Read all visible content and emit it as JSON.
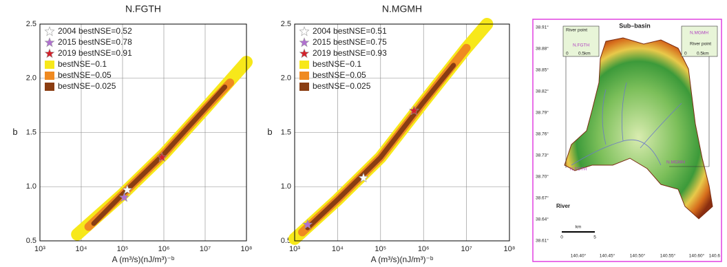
{
  "chart_data": [
    {
      "type": "band",
      "title": "N.FGTH",
      "xlabel": "A (m³/s)(nJ/m³)⁻ᵇ",
      "ylabel": "b",
      "xscale": "log",
      "xlim": [
        1000,
        100000000
      ],
      "xticks": [
        {
          "value": 1000,
          "label": "10³"
        },
        {
          "value": 10000,
          "label": "10⁴"
        },
        {
          "value": 100000,
          "label": "10⁵"
        },
        {
          "value": 1000000,
          "label": "10⁶"
        },
        {
          "value": 10000000,
          "label": "10⁷"
        },
        {
          "value": 100000000,
          "label": "10⁸"
        }
      ],
      "ylim": [
        0.5,
        2.5
      ],
      "yticks": [
        0.5,
        {
          "value": 1,
          "label": "1.0"
        },
        1.5,
        {
          "value": 2,
          "label": "2.0"
        },
        2.5
      ],
      "grid": true,
      "legend": "upper left",
      "series": [
        {
          "name": "bestNSE−0.1",
          "color": "#f7e81a",
          "x": [
            8000,
            100000,
            1000000,
            10000000,
            100000000
          ],
          "values": [
            0.56,
            0.93,
            1.3,
            1.72,
            2.15
          ]
        },
        {
          "name": "bestNSE−0.05",
          "color": "#ef8a21",
          "x": [
            15000,
            100000,
            1000000,
            10000000,
            40000000
          ],
          "values": [
            0.63,
            0.93,
            1.3,
            1.72,
            1.96
          ]
        },
        {
          "name": "bestNSE−0.025",
          "color": "#8a3d12",
          "x": [
            20000,
            100000,
            1000000,
            10000000,
            30000000
          ],
          "values": [
            0.66,
            0.93,
            1.3,
            1.72,
            1.92
          ]
        },
        {
          "name": "2004 bestNSE=0.52",
          "color": "#ffffff",
          "marker": "star",
          "x": [
            130000
          ],
          "values": [
            0.97
          ]
        },
        {
          "name": "2015 bestNSE=0.78",
          "color": "#b070d0",
          "marker": "star",
          "x": [
            110000
          ],
          "values": [
            0.9
          ]
        },
        {
          "name": "2019 bestNSE=0.91",
          "color": "#d4202a",
          "marker": "star",
          "x": [
            900000
          ],
          "values": [
            1.27
          ]
        }
      ]
    },
    {
      "type": "band",
      "title": "N.MGMH",
      "xlabel": "A (m³/s)(nJ/m³)⁻ᵇ",
      "ylabel": "b",
      "xscale": "log",
      "xlim": [
        1000,
        100000000
      ],
      "xticks": [
        {
          "value": 1000,
          "label": "10³"
        },
        {
          "value": 10000,
          "label": "10⁴"
        },
        {
          "value": 100000,
          "label": "10⁵"
        },
        {
          "value": 1000000,
          "label": "10⁶"
        },
        {
          "value": 10000000,
          "label": "10⁷"
        },
        {
          "value": 100000000,
          "label": "10⁸"
        }
      ],
      "ylim": [
        0.5,
        2.5
      ],
      "yticks": [
        0.5,
        {
          "value": 1,
          "label": "1.0"
        },
        1.5,
        {
          "value": 2,
          "label": "2.0"
        },
        2.5
      ],
      "grid": true,
      "legend": "upper left",
      "series": [
        {
          "name": "bestNSE−0.1",
          "color": "#f7e81a",
          "x": [
            1000,
            10000,
            100000,
            1000000,
            10000000,
            30000000
          ],
          "values": [
            0.52,
            0.88,
            1.27,
            1.78,
            2.28,
            2.5
          ]
        },
        {
          "name": "bestNSE−0.05",
          "color": "#ef8a21",
          "x": [
            1500,
            10000,
            100000,
            1000000,
            10000000
          ],
          "values": [
            0.58,
            0.88,
            1.27,
            1.78,
            2.28
          ]
        },
        {
          "name": "bestNSE−0.025",
          "color": "#8a3d12",
          "x": [
            2000,
            10000,
            100000,
            1000000,
            5000000
          ],
          "values": [
            0.62,
            0.88,
            1.27,
            1.78,
            2.12
          ]
        },
        {
          "name": "2004 bestNSE=0.51",
          "color": "#ffffff",
          "marker": "star",
          "x": [
            40000
          ],
          "values": [
            1.08
          ]
        },
        {
          "name": "2015 bestNSE=0.75",
          "color": "#b070d0",
          "marker": "star",
          "x": [
            2000
          ],
          "values": [
            0.65
          ]
        },
        {
          "name": "2019 bestNSE=0.93",
          "color": "#d4202a",
          "marker": "star",
          "x": [
            600000
          ],
          "values": [
            1.7
          ]
        }
      ]
    }
  ],
  "map": {
    "title": "Sub–basin",
    "lat_ticks": [
      "38.91°",
      "38.88°",
      "38.85°",
      "38.82°",
      "38.79°",
      "38.76°",
      "38.73°",
      "38.70°",
      "38.67°",
      "38.64°",
      "38.61°"
    ],
    "lon_ticks": [
      "140.40°",
      "140.45°",
      "140.50°",
      "140.55°",
      "140.60°",
      "140.6"
    ],
    "legend": "River",
    "scale_label": "km",
    "scale_ticks": [
      "0",
      "5"
    ],
    "stations": [
      "N.FGTH",
      "N.MGMH"
    ],
    "inset_left": {
      "label": "River point",
      "station": "N.FGTH",
      "scale": [
        "0",
        "0.5km"
      ]
    },
    "inset_right": {
      "label": "River point",
      "station": "N.MGMH",
      "scale": [
        "0",
        "0.5km"
      ]
    }
  }
}
